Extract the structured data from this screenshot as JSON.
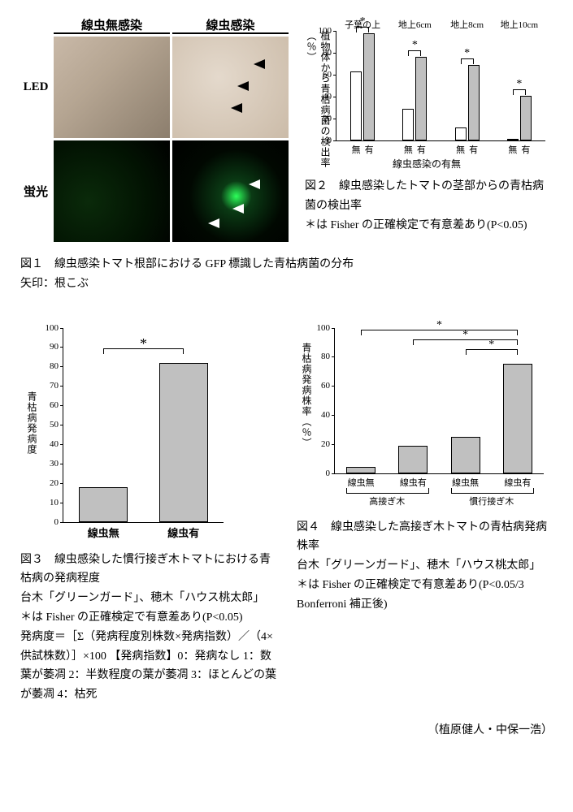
{
  "fig1": {
    "col_heads": [
      "線虫無感染",
      "線虫感染"
    ],
    "row_heads": [
      "LED",
      "蛍光"
    ],
    "caption": "図１　線虫感染トマト根部における GFP 標識した青枯病菌の分布",
    "note": "矢印：根こぶ"
  },
  "fig2": {
    "groups": [
      "子葉の上",
      "地上6cm",
      "地上8cm",
      "地上10cm"
    ],
    "pair_labels": [
      "無",
      "有"
    ],
    "data": {
      "none": [
        63,
        29,
        12,
        0
      ],
      "with": [
        98,
        76,
        69,
        41
      ]
    },
    "sig_all": true,
    "ylabel": "植物体から青枯病菌の検出率（％）",
    "xlabel": "線虫感染の有無",
    "ylim": [
      0,
      100
    ],
    "ytick_step": 20,
    "colors": {
      "none": "#ffffff",
      "with": "#c0c0c0"
    },
    "caption": "図２　線虫感染したトマトの茎部からの青枯病菌の検出率",
    "note": "＊は Fisher の正確検定で有意差あり(P<0.05)"
  },
  "fig3": {
    "categories": [
      "線虫無",
      "線虫有"
    ],
    "values": [
      18,
      82
    ],
    "sig": true,
    "ylabel": "青枯病発病度",
    "ylim": [
      0,
      100
    ],
    "ytick_step": 10,
    "bar_color": "#c0c0c0",
    "caption": "図３　線虫感染した慣行接ぎ木トマトにおける青枯病の発病程度",
    "notes": [
      "台木「グリーンガード」、穂木「ハウス桃太郎」",
      "＊は Fisher の正確検定で有意差あり(P<0.05)",
      "発病度＝［Σ（発病程度別株数×発病指数）／（4×供試株数）］×100 【発病指数】0：発病なし 1：数葉が萎凋 2：半数程度の葉が萎凋 3：ほとんどの葉が萎凋 4：枯死"
    ]
  },
  "fig4": {
    "super_groups": [
      "高接ぎ木",
      "慣行接ぎ木"
    ],
    "categories": [
      "線虫無",
      "線虫有",
      "線虫無",
      "線虫有"
    ],
    "values": [
      4,
      19,
      25,
      75
    ],
    "ylabel": "青枯病発病株率（％）",
    "ylim": [
      0,
      100
    ],
    "ytick_step": 20,
    "bar_color": "#c0c0c0",
    "sig_pairs": [
      [
        0,
        3
      ],
      [
        1,
        3
      ],
      [
        2,
        3
      ]
    ],
    "caption": "図４　線虫感染した高接ぎ木トマトの青枯病発病株率",
    "notes": [
      "台木「グリーンガード」、穂木「ハウス桃太郎」",
      "＊は Fisher の正確検定で有意差あり(P<0.05/3 Bonferroni 補正後)"
    ]
  },
  "attribution": "（植原健人・中保一浩）"
}
